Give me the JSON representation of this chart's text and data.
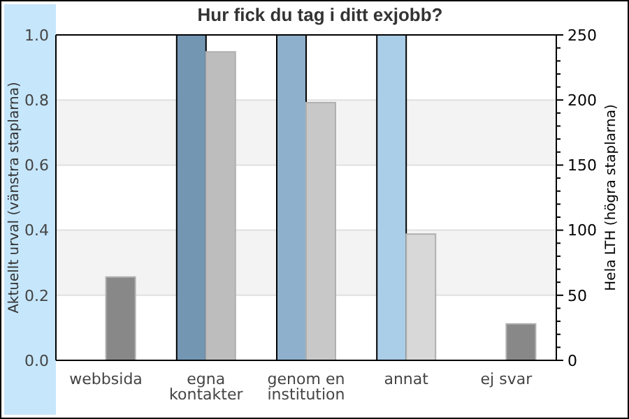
{
  "chart_data": {
    "type": "bar",
    "title": "Hur fick du tag i ditt exjobb?",
    "ylabel": "Aktuellt urval (vänstra staplarna)",
    "y2label": "Hela LTH (högra staplarna)",
    "categories": [
      "webbsida",
      "egna\nkontakter",
      "genom en\ninstitution",
      "annat",
      "ej svar"
    ],
    "series": [
      {
        "colors": [
          null,
          "#7396b3",
          "#8fb0cc",
          "#aacde8",
          null
        ],
        "values": [
          null,
          1.0,
          1.0,
          1.0,
          null
        ]
      },
      {
        "axis": "y2",
        "colors": [
          "#888888",
          "#bdbdbd",
          "#c8c8c8",
          "#d8d8d8",
          "#888888"
        ],
        "values": [
          64,
          237,
          198,
          97,
          28
        ]
      }
    ],
    "ylim": [
      0,
      1
    ],
    "yticks": [
      {
        "value": 0,
        "label": "0.0"
      },
      0.2,
      0.4,
      0.6,
      0.8,
      {
        "value": 1,
        "label": "1.0"
      }
    ],
    "y2lim": [
      0,
      250
    ],
    "y2ticks": [
      0,
      {
        "value": 10,
        "label": null
      },
      {
        "value": 20,
        "label": null
      },
      {
        "value": 30,
        "label": null
      },
      {
        "value": 40,
        "label": null
      },
      50,
      {
        "value": 60,
        "label": null
      },
      {
        "value": 70,
        "label": null
      },
      {
        "value": 80,
        "label": null
      },
      {
        "value": 90,
        "label": null
      },
      100,
      {
        "value": 110,
        "label": null
      },
      {
        "value": 120,
        "label": null
      },
      {
        "value": 130,
        "label": null
      },
      {
        "value": 140,
        "label": null
      },
      150,
      {
        "value": 160,
        "label": null
      },
      {
        "value": 170,
        "label": null
      },
      {
        "value": 180,
        "label": null
      },
      {
        "value": 190,
        "label": null
      },
      200,
      {
        "value": 210,
        "label": null
      },
      {
        "value": 220,
        "label": null
      },
      {
        "value": 230,
        "label": null
      },
      {
        "value": 240,
        "label": null
      },
      250
    ],
    "grid": "y"
  }
}
